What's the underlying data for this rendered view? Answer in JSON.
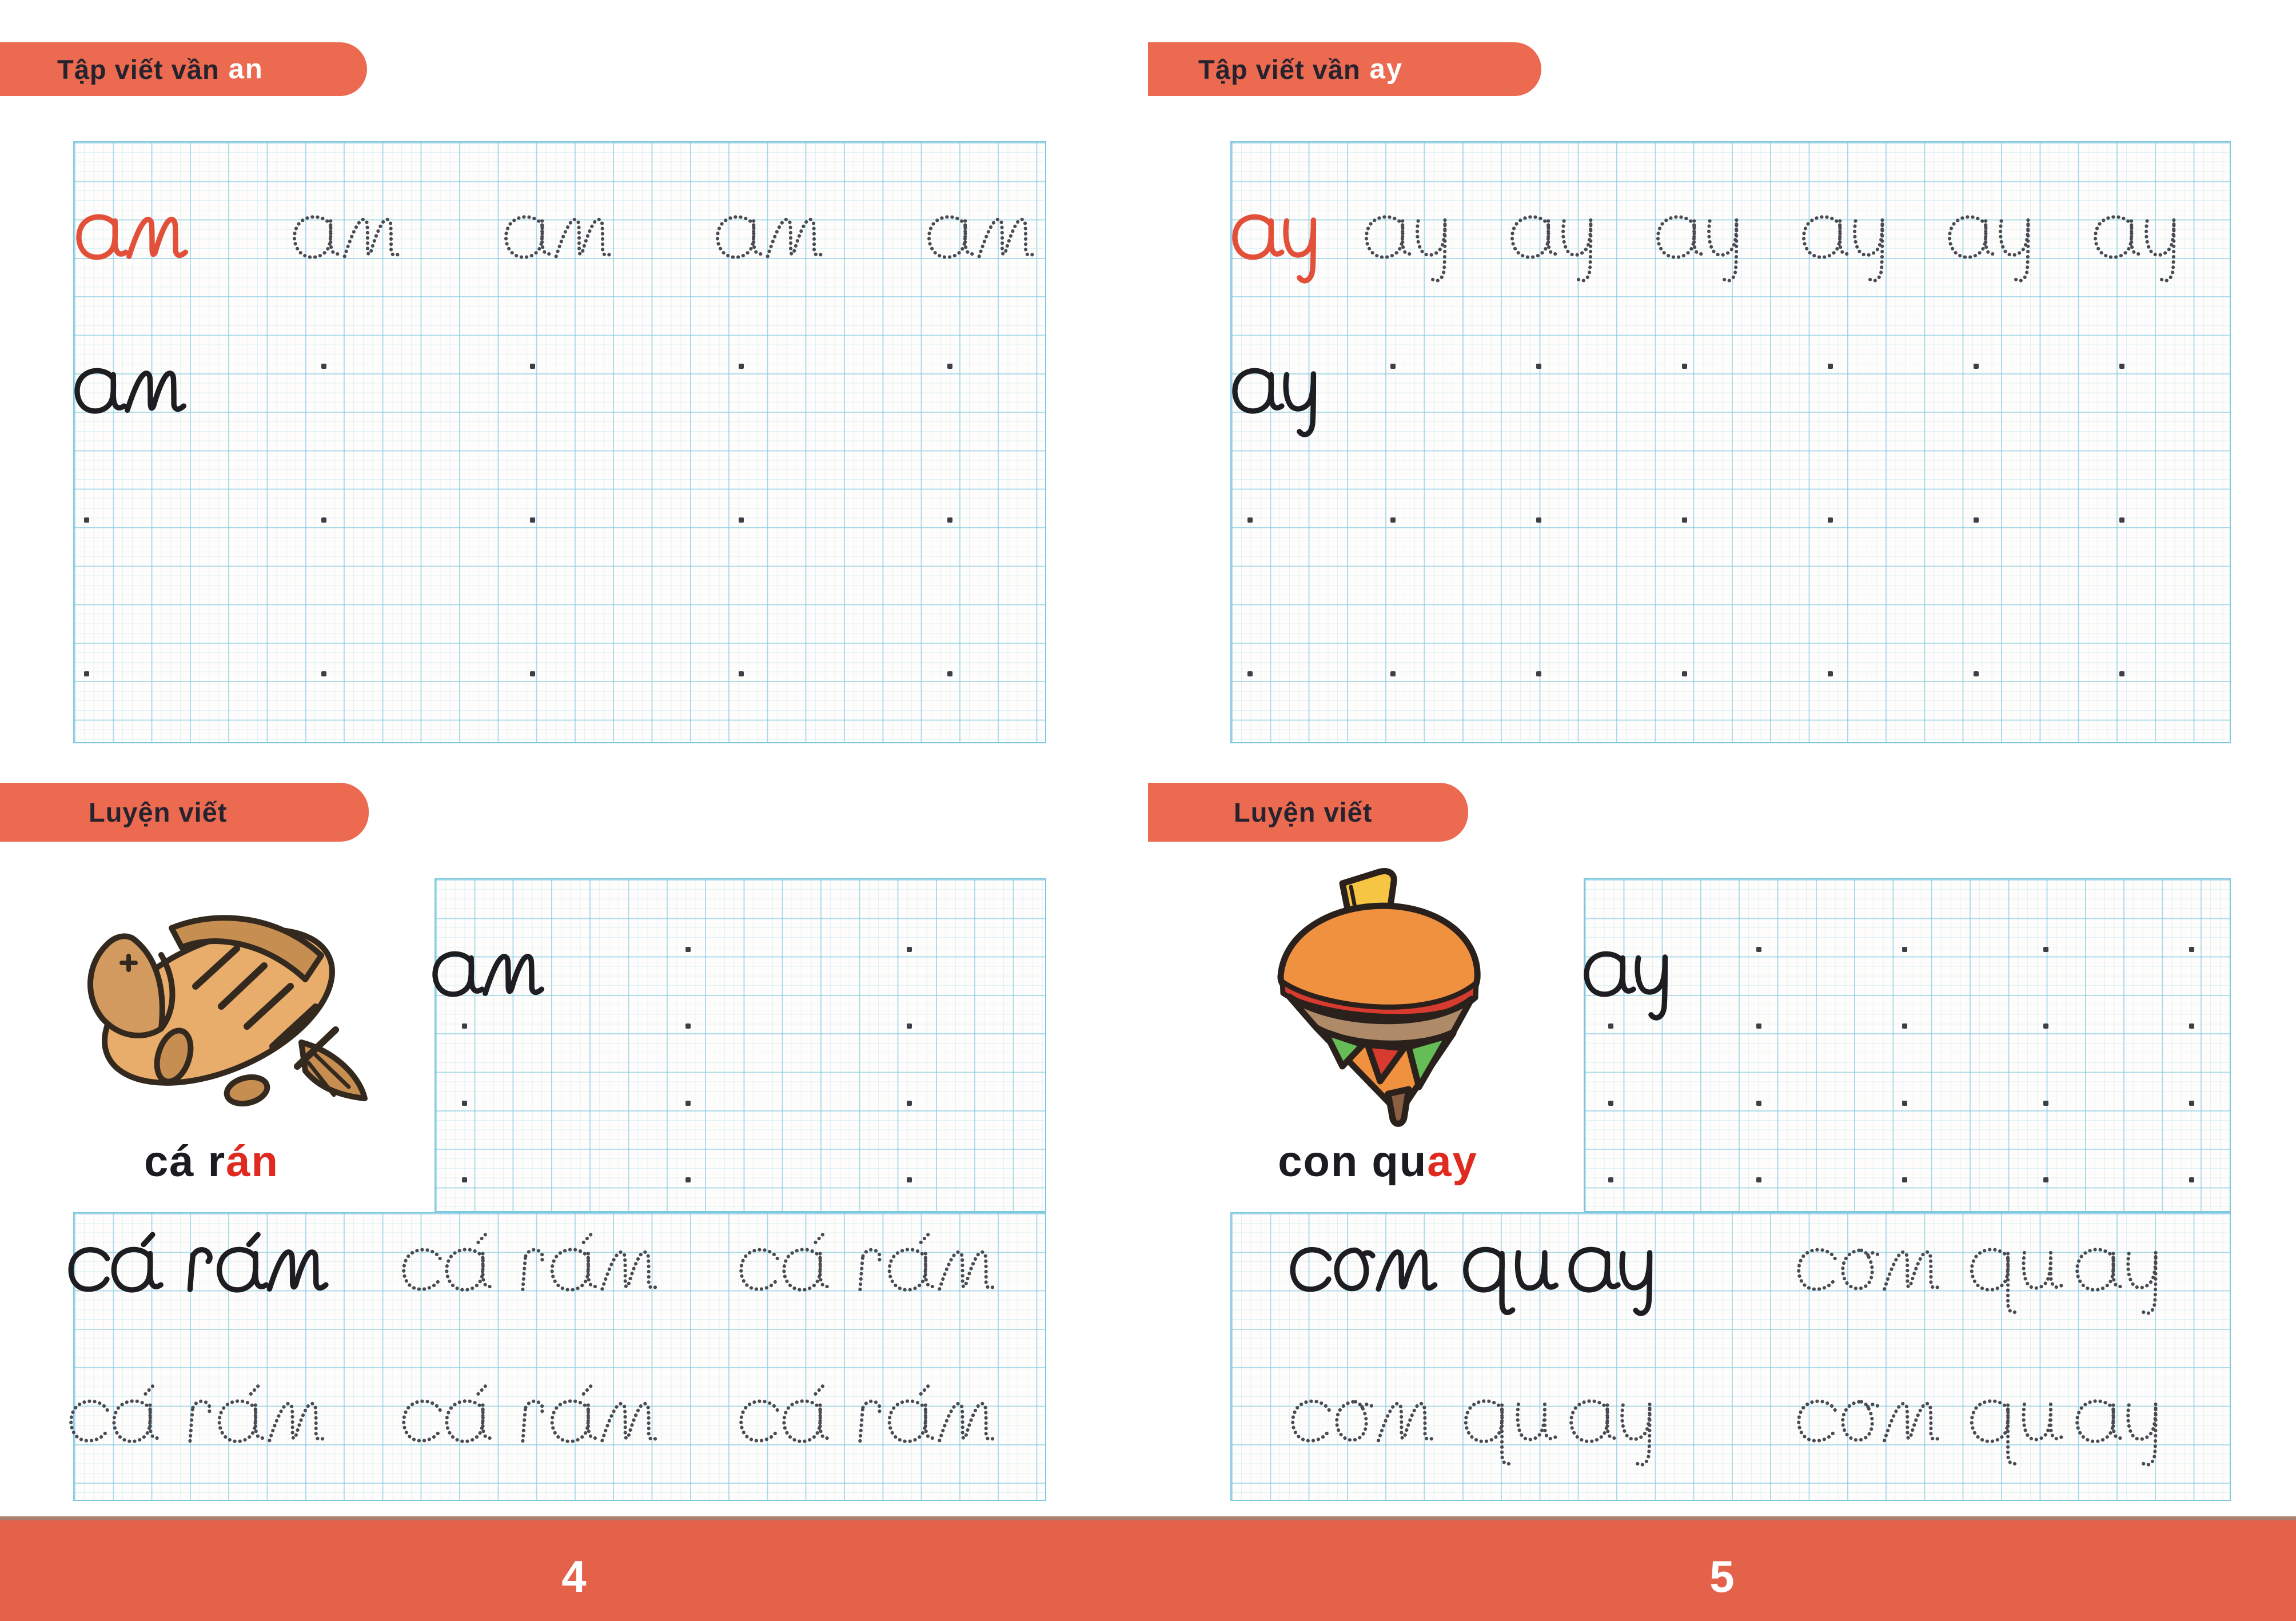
{
  "pages": [
    {
      "side": "left",
      "page_number": "4",
      "header": {
        "prefix": "Tập viết vần",
        "syllable": "an"
      },
      "section2_label": "Luyện viết",
      "vocab": {
        "image": "fried-fish-illustration",
        "label_black": "cá r",
        "label_red": "án",
        "word": "cá rán"
      },
      "grids": {
        "top": {
          "rows": [
            [
              "an:red",
              "an:dotted",
              "an:dotted",
              "an:dotted",
              "an:dotted"
            ],
            [
              "an:solid",
              "dot",
              "dot",
              "dot",
              "dot"
            ],
            [
              "dot",
              "dot",
              "dot",
              "dot",
              "dot"
            ],
            [
              "dot",
              "dot",
              "dot",
              "dot",
              "dot"
            ]
          ]
        },
        "block": {
          "rows": [
            [
              "an:solid",
              "dot",
              "dot"
            ],
            [
              "dot",
              "dot",
              "dot"
            ],
            [
              "dot",
              "dot",
              "dot"
            ],
            [
              "dot",
              "dot",
              "dot"
            ]
          ]
        },
        "bottom": {
          "rows": [
            [
              "cá rán:solid",
              "cá rán:dotted",
              "cá rán:dotted"
            ],
            [
              "cá rán:dotted",
              "cá rán:dotted",
              "cá rán:dotted"
            ]
          ]
        }
      }
    },
    {
      "side": "right",
      "page_number": "5",
      "header": {
        "prefix": "Tập viết vần",
        "syllable": "ay"
      },
      "section2_label": "Luyện viết",
      "vocab": {
        "image": "spinning-top-illustration",
        "label_black": "con qu",
        "label_red": "ay",
        "word": "con quay"
      },
      "grids": {
        "top": {
          "rows": [
            [
              "ay:red",
              "ay:dotted",
              "ay:dotted",
              "ay:dotted",
              "ay:dotted",
              "ay:dotted",
              "ay:dotted"
            ],
            [
              "ay:solid",
              "dot",
              "dot",
              "dot",
              "dot",
              "dot",
              "dot"
            ],
            [
              "dot",
              "dot",
              "dot",
              "dot",
              "dot",
              "dot",
              "dot"
            ],
            [
              "dot",
              "dot",
              "dot",
              "dot",
              "dot",
              "dot",
              "dot"
            ]
          ]
        },
        "block": {
          "rows": [
            [
              "ay:solid",
              "dot",
              "dot",
              "dot",
              "dot"
            ],
            [
              "dot",
              "dot",
              "dot",
              "dot",
              "dot"
            ],
            [
              "dot",
              "dot",
              "dot",
              "dot",
              "dot"
            ],
            [
              "dot",
              "dot",
              "dot",
              "dot",
              "dot"
            ]
          ]
        },
        "bottom": {
          "rows": [
            [
              "con quay:solid",
              "con quay:dotted"
            ],
            [
              "con quay:dotted",
              "con quay:dotted"
            ]
          ]
        }
      }
    }
  ],
  "colors": {
    "badge": "#EB6A50",
    "footer": "#E4614A",
    "accent_red": "#E2503A",
    "ink": "#1D1D22",
    "grid_bold": "#7FC9E0",
    "grid_thin": "#96D4EA"
  }
}
